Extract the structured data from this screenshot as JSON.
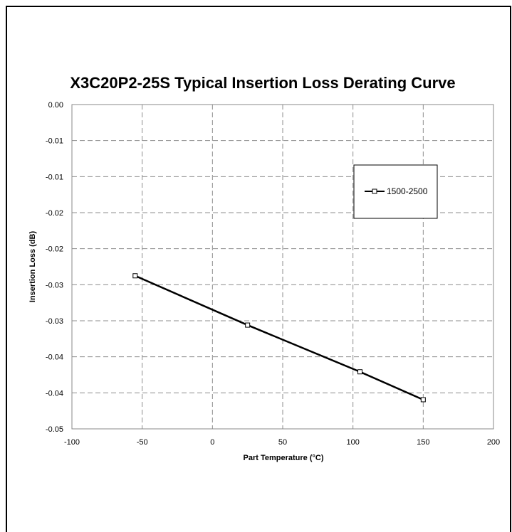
{
  "chart_data": {
    "type": "line",
    "title": "X3C20P2-25S Typical Insertion Loss Derating Curve",
    "xlabel": "Part Temperature (°C)",
    "ylabel": "Insertion Loss (dB)",
    "xlim": [
      -100,
      200
    ],
    "ylim": [
      -0.05,
      0.0
    ],
    "x_ticks": [
      -100,
      -50,
      0,
      50,
      100,
      150,
      200
    ],
    "x_tick_labels": [
      "-100",
      "-50",
      "0",
      "50",
      "100",
      "150",
      "200"
    ],
    "y_tick_labels": [
      "0.00",
      "-0.01",
      "-0.01",
      "-0.02",
      "-0.02",
      "-0.03",
      "-0.03",
      "-0.04",
      "-0.04",
      "-0.05"
    ],
    "grid": true,
    "legend_position": "upper-right",
    "series": [
      {
        "name": "1500-2500",
        "color": "#000000",
        "marker": "square",
        "x": [
          -55,
          25,
          105,
          150
        ],
        "y": [
          -0.0264,
          -0.034,
          -0.0412,
          -0.0455
        ]
      }
    ]
  }
}
